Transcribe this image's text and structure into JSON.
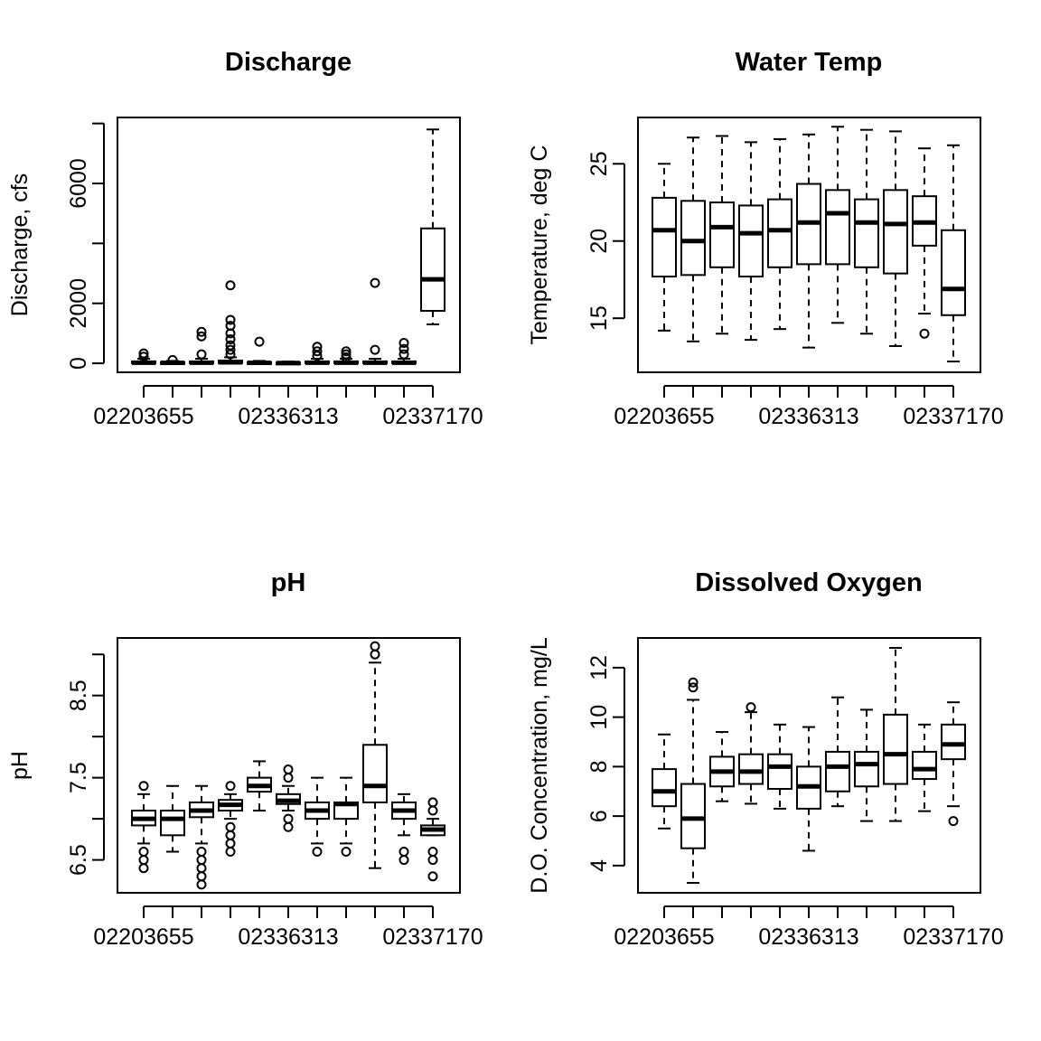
{
  "chart_data": [
    {
      "type": "boxplot",
      "title": "Discharge",
      "xlabel": "",
      "ylabel": "Discharge, cfs",
      "ylim": [
        -300,
        8200
      ],
      "yticks": [
        0,
        2000,
        4000,
        6000,
        8000
      ],
      "ytick_labels": [
        "0",
        "2000",
        "",
        "6000",
        ""
      ],
      "x_tick_labels": [
        "02203655",
        "",
        "",
        "",
        "",
        "02336313",
        "",
        "",
        "",
        "",
        "02337170"
      ],
      "grid": false,
      "boxes": [
        {
          "min": 0,
          "q1": 5,
          "median": 20,
          "q3": 60,
          "max": 150,
          "outliers": [
            220,
            330
          ]
        },
        {
          "min": 0,
          "q1": 5,
          "median": 15,
          "q3": 40,
          "max": 80,
          "outliers": [
            110
          ]
        },
        {
          "min": 0,
          "q1": 5,
          "median": 20,
          "q3": 60,
          "max": 150,
          "outliers": [
            300,
            900,
            1050
          ]
        },
        {
          "min": 0,
          "q1": 10,
          "median": 30,
          "q3": 90,
          "max": 200,
          "outliers": [
            300,
            450,
            600,
            800,
            1000,
            1250,
            1450,
            2600
          ]
        },
        {
          "min": 0,
          "q1": 5,
          "median": 15,
          "q3": 40,
          "max": 80,
          "outliers": [
            720
          ]
        },
        {
          "min": 0,
          "q1": 3,
          "median": 10,
          "q3": 25,
          "max": 60,
          "outliers": []
        },
        {
          "min": 0,
          "q1": 5,
          "median": 20,
          "q3": 60,
          "max": 150,
          "outliers": [
            250,
            400,
            550
          ]
        },
        {
          "min": 0,
          "q1": 5,
          "median": 20,
          "q3": 60,
          "max": 150,
          "outliers": [
            200,
            300,
            400
          ]
        },
        {
          "min": 0,
          "q1": 5,
          "median": 20,
          "q3": 60,
          "max": 150,
          "outliers": [
            450,
            2680
          ]
        },
        {
          "min": 0,
          "q1": 5,
          "median": 20,
          "q3": 60,
          "max": 150,
          "outliers": [
            300,
            480,
            680
          ]
        },
        {
          "min": 1300,
          "q1": 1750,
          "median": 2800,
          "q3": 4500,
          "max": 7800,
          "outliers": []
        }
      ]
    },
    {
      "type": "boxplot",
      "title": "Water Temp",
      "xlabel": "",
      "ylabel": "Temperature, deg C",
      "ylim": [
        11.5,
        28
      ],
      "yticks": [
        15,
        20,
        25
      ],
      "ytick_labels": [
        "15",
        "20",
        "25"
      ],
      "x_tick_labels": [
        "02203655",
        "",
        "",
        "",
        "",
        "02336313",
        "",
        "",
        "",
        "",
        "02337170"
      ],
      "grid": false,
      "boxes": [
        {
          "min": 14.2,
          "q1": 17.7,
          "median": 20.7,
          "q3": 22.8,
          "max": 25.0,
          "outliers": []
        },
        {
          "min": 13.5,
          "q1": 17.8,
          "median": 20.0,
          "q3": 22.6,
          "max": 26.7,
          "outliers": []
        },
        {
          "min": 14.0,
          "q1": 18.3,
          "median": 20.9,
          "q3": 22.5,
          "max": 26.8,
          "outliers": []
        },
        {
          "min": 13.6,
          "q1": 17.7,
          "median": 20.5,
          "q3": 22.3,
          "max": 26.4,
          "outliers": []
        },
        {
          "min": 14.3,
          "q1": 18.3,
          "median": 20.7,
          "q3": 22.7,
          "max": 26.6,
          "outliers": []
        },
        {
          "min": 13.1,
          "q1": 18.5,
          "median": 21.2,
          "q3": 23.7,
          "max": 26.9,
          "outliers": []
        },
        {
          "min": 14.7,
          "q1": 18.5,
          "median": 21.8,
          "q3": 23.3,
          "max": 27.4,
          "outliers": []
        },
        {
          "min": 14.0,
          "q1": 18.3,
          "median": 21.2,
          "q3": 22.7,
          "max": 27.2,
          "outliers": []
        },
        {
          "min": 13.2,
          "q1": 17.9,
          "median": 21.1,
          "q3": 23.3,
          "max": 27.1,
          "outliers": []
        },
        {
          "min": 15.3,
          "q1": 19.7,
          "median": 21.2,
          "q3": 22.9,
          "max": 26.0,
          "outliers": [
            14.0
          ]
        },
        {
          "min": 12.2,
          "q1": 15.2,
          "median": 16.9,
          "q3": 20.7,
          "max": 26.2,
          "outliers": []
        }
      ]
    },
    {
      "type": "boxplot",
      "title": "pH",
      "xlabel": "",
      "ylabel": "pH",
      "ylim": [
        6.1,
        9.2
      ],
      "yticks": [
        6.5,
        7.0,
        7.5,
        8.0,
        8.5,
        9.0
      ],
      "ytick_labels": [
        "6.5",
        "",
        "7.5",
        "",
        "8.5",
        ""
      ],
      "x_tick_labels": [
        "02203655",
        "",
        "",
        "",
        "",
        "02336313",
        "",
        "",
        "",
        "",
        "02337170"
      ],
      "grid": false,
      "boxes": [
        {
          "min": 6.7,
          "q1": 6.92,
          "median": 7.0,
          "q3": 7.1,
          "max": 7.3,
          "outliers": [
            7.4,
            6.6,
            6.5,
            6.4
          ]
        },
        {
          "min": 6.6,
          "q1": 6.8,
          "median": 7.0,
          "q3": 7.1,
          "max": 7.4,
          "outliers": []
        },
        {
          "min": 6.7,
          "q1": 7.02,
          "median": 7.1,
          "q3": 7.2,
          "max": 7.4,
          "outliers": [
            6.6,
            6.5,
            6.4,
            6.3,
            6.2
          ]
        },
        {
          "min": 7.0,
          "q1": 7.1,
          "median": 7.17,
          "q3": 7.23,
          "max": 7.3,
          "outliers": [
            7.4,
            6.9,
            6.8,
            6.7,
            6.6
          ]
        },
        {
          "min": 7.1,
          "q1": 7.33,
          "median": 7.4,
          "q3": 7.5,
          "max": 7.7,
          "outliers": []
        },
        {
          "min": 7.1,
          "q1": 7.18,
          "median": 7.22,
          "q3": 7.3,
          "max": 7.4,
          "outliers": [
            7.5,
            7.6,
            7.0,
            6.9
          ]
        },
        {
          "min": 6.7,
          "q1": 7.0,
          "median": 7.1,
          "q3": 7.2,
          "max": 7.5,
          "outliers": [
            6.6
          ]
        },
        {
          "min": 6.7,
          "q1": 7.0,
          "median": 7.18,
          "q3": 7.2,
          "max": 7.5,
          "outliers": [
            6.6
          ]
        },
        {
          "min": 6.4,
          "q1": 7.2,
          "median": 7.4,
          "q3": 7.9,
          "max": 8.9,
          "outliers": [
            9.0,
            9.1
          ]
        },
        {
          "min": 6.8,
          "q1": 7.0,
          "median": 7.1,
          "q3": 7.2,
          "max": 7.3,
          "outliers": [
            6.6,
            6.5
          ]
        },
        {
          "min": 6.8,
          "q1": 6.8,
          "median": 6.87,
          "q3": 6.92,
          "max": 7.0,
          "outliers": [
            7.1,
            7.2,
            6.6,
            6.5,
            6.3
          ]
        }
      ]
    },
    {
      "type": "boxplot",
      "title": "Dissolved Oxygen",
      "xlabel": "",
      "ylabel": "D.O. Concentration, mg/L",
      "ylim": [
        2.9,
        13.2
      ],
      "yticks": [
        4,
        6,
        8,
        10,
        12
      ],
      "ytick_labels": [
        "4",
        "6",
        "8",
        "10",
        "12"
      ],
      "x_tick_labels": [
        "02203655",
        "",
        "",
        "",
        "",
        "02336313",
        "",
        "",
        "",
        "",
        "02337170"
      ],
      "grid": false,
      "boxes": [
        {
          "min": 5.5,
          "q1": 6.4,
          "median": 7.0,
          "q3": 7.9,
          "max": 9.3,
          "outliers": []
        },
        {
          "min": 3.3,
          "q1": 4.7,
          "median": 5.9,
          "q3": 7.3,
          "max": 10.7,
          "outliers": [
            11.2,
            11.4
          ]
        },
        {
          "min": 6.6,
          "q1": 7.2,
          "median": 7.8,
          "q3": 8.4,
          "max": 9.4,
          "outliers": []
        },
        {
          "min": 6.5,
          "q1": 7.3,
          "median": 7.8,
          "q3": 8.5,
          "max": 10.2,
          "outliers": [
            10.4
          ]
        },
        {
          "min": 6.3,
          "q1": 7.1,
          "median": 8.0,
          "q3": 8.5,
          "max": 9.7,
          "outliers": []
        },
        {
          "min": 4.6,
          "q1": 6.3,
          "median": 7.2,
          "q3": 8.0,
          "max": 9.6,
          "outliers": []
        },
        {
          "min": 6.4,
          "q1": 7.0,
          "median": 8.0,
          "q3": 8.6,
          "max": 10.8,
          "outliers": []
        },
        {
          "min": 5.8,
          "q1": 7.2,
          "median": 8.1,
          "q3": 8.6,
          "max": 10.3,
          "outliers": []
        },
        {
          "min": 5.8,
          "q1": 7.3,
          "median": 8.5,
          "q3": 10.1,
          "max": 12.8,
          "outliers": []
        },
        {
          "min": 6.2,
          "q1": 7.5,
          "median": 7.9,
          "q3": 8.6,
          "max": 9.7,
          "outliers": []
        },
        {
          "min": 6.4,
          "q1": 8.3,
          "median": 8.9,
          "q3": 9.7,
          "max": 10.6,
          "outliers": [
            5.8
          ]
        }
      ]
    }
  ]
}
